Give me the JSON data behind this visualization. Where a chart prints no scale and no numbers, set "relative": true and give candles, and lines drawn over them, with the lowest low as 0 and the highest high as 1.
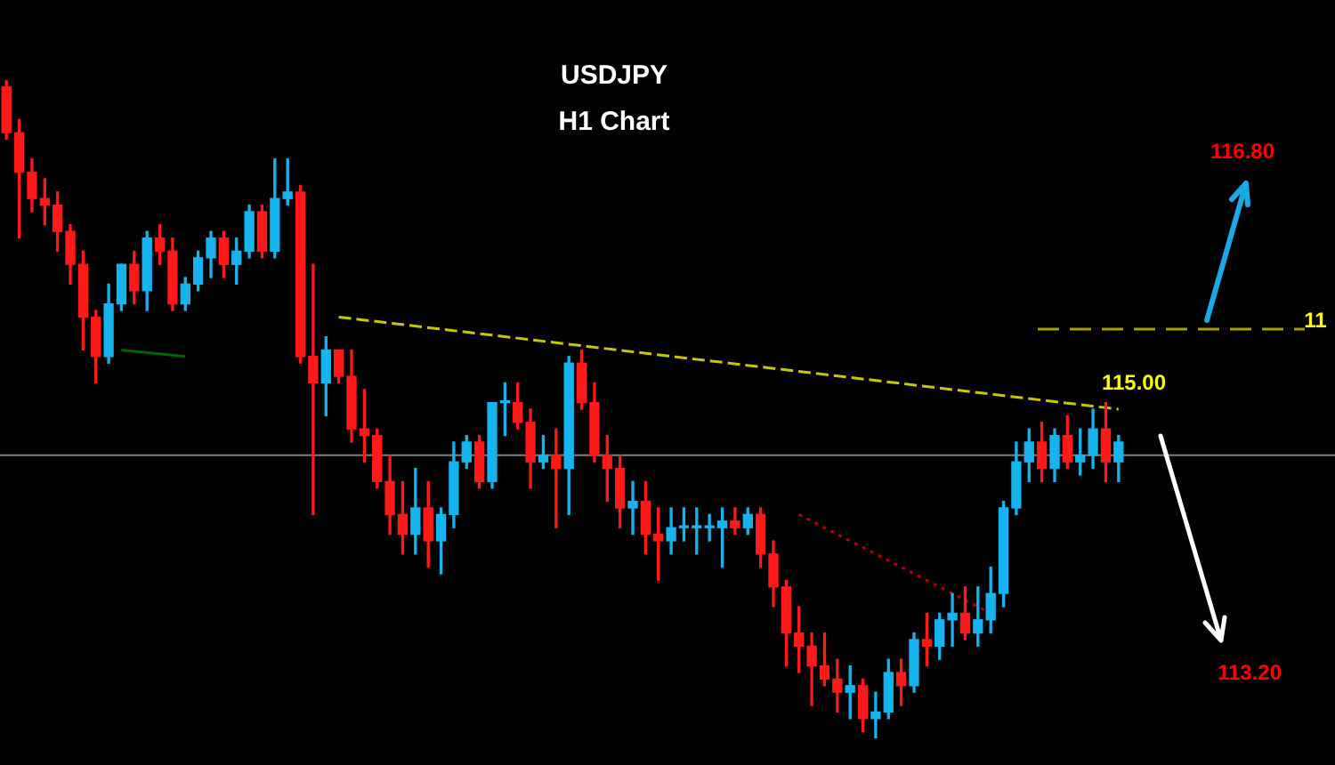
{
  "chart_data": {
    "type": "candlestick",
    "title": "USDJPY",
    "subtitle": "H1 Chart",
    "relative": true,
    "categories": [
      null,
      null,
      null,
      null,
      null,
      null,
      null,
      null,
      null,
      null,
      null,
      null,
      null,
      null,
      null,
      null,
      null,
      null,
      null,
      null,
      null,
      null,
      null,
      null,
      null,
      null,
      null,
      null,
      null,
      null,
      null,
      null,
      null,
      null,
      null,
      null,
      null,
      null,
      null,
      null,
      null,
      null,
      null,
      null,
      null,
      null,
      null,
      null,
      null,
      null,
      null,
      null,
      null,
      null,
      null,
      null,
      null,
      null,
      null,
      null,
      null,
      null,
      null,
      null,
      null,
      null,
      null,
      null,
      null,
      null,
      null,
      null,
      null,
      null,
      null,
      null,
      null,
      null,
      null,
      null,
      null,
      null,
      null,
      null,
      null,
      null,
      null,
      null
    ],
    "ohlc": [
      [
        0.99,
        1.0,
        0.91,
        0.92
      ],
      [
        0.92,
        0.94,
        0.76,
        0.86
      ],
      [
        0.86,
        0.88,
        0.8,
        0.82
      ],
      [
        0.82,
        0.85,
        0.78,
        0.81
      ],
      [
        0.81,
        0.83,
        0.74,
        0.77
      ],
      [
        0.77,
        0.78,
        0.69,
        0.72
      ],
      [
        0.72,
        0.74,
        0.59,
        0.64
      ],
      [
        0.64,
        0.65,
        0.54,
        0.58
      ],
      [
        0.58,
        0.69,
        0.57,
        0.66
      ],
      [
        0.66,
        0.72,
        0.65,
        0.72
      ],
      [
        0.72,
        0.74,
        0.66,
        0.68
      ],
      [
        0.68,
        0.77,
        0.65,
        0.76
      ],
      [
        0.76,
        0.78,
        0.72,
        0.74
      ],
      [
        0.74,
        0.76,
        0.65,
        0.66
      ],
      [
        0.66,
        0.7,
        0.65,
        0.69
      ],
      [
        0.69,
        0.74,
        0.68,
        0.73
      ],
      [
        0.73,
        0.77,
        0.7,
        0.76
      ],
      [
        0.76,
        0.77,
        0.7,
        0.72
      ],
      [
        0.72,
        0.76,
        0.69,
        0.74
      ],
      [
        0.74,
        0.81,
        0.73,
        0.8
      ],
      [
        0.8,
        0.81,
        0.73,
        0.74
      ],
      [
        0.74,
        0.88,
        0.73,
        0.82
      ],
      [
        0.82,
        0.88,
        0.81,
        0.83
      ],
      [
        0.83,
        0.84,
        0.57,
        0.58
      ],
      [
        0.58,
        0.72,
        0.34,
        0.54
      ],
      [
        0.54,
        0.61,
        0.49,
        0.59
      ],
      [
        0.59,
        0.59,
        0.54,
        0.55
      ],
      [
        0.55,
        0.59,
        0.45,
        0.47
      ],
      [
        0.47,
        0.53,
        0.42,
        0.46
      ],
      [
        0.46,
        0.47,
        0.38,
        0.39
      ],
      [
        0.39,
        0.43,
        0.31,
        0.34
      ],
      [
        0.34,
        0.39,
        0.28,
        0.31
      ],
      [
        0.31,
        0.41,
        0.28,
        0.35
      ],
      [
        0.35,
        0.39,
        0.26,
        0.3
      ],
      [
        0.3,
        0.35,
        0.25,
        0.34
      ],
      [
        0.34,
        0.45,
        0.32,
        0.42
      ],
      [
        0.42,
        0.46,
        0.41,
        0.45
      ],
      [
        0.45,
        0.46,
        0.38,
        0.39
      ],
      [
        0.39,
        0.51,
        0.38,
        0.51
      ],
      [
        0.51,
        0.54,
        0.46,
        0.51
      ],
      [
        0.51,
        0.54,
        0.47,
        0.48
      ],
      [
        0.48,
        0.5,
        0.38,
        0.42
      ],
      [
        0.42,
        0.46,
        0.41,
        0.43
      ],
      [
        0.43,
        0.47,
        0.32,
        0.41
      ],
      [
        0.41,
        0.58,
        0.34,
        0.57
      ],
      [
        0.57,
        0.59,
        0.5,
        0.51
      ],
      [
        0.51,
        0.54,
        0.42,
        0.43
      ],
      [
        0.43,
        0.46,
        0.36,
        0.41
      ],
      [
        0.41,
        0.43,
        0.32,
        0.35
      ],
      [
        0.35,
        0.39,
        0.31,
        0.36
      ],
      [
        0.36,
        0.39,
        0.28,
        0.31
      ],
      [
        0.31,
        0.35,
        0.24,
        0.3
      ],
      [
        0.3,
        0.35,
        0.28,
        0.32
      ],
      [
        0.32,
        0.35,
        0.3,
        0.32
      ],
      [
        0.32,
        0.35,
        0.28,
        0.32
      ],
      [
        0.32,
        0.34,
        0.3,
        0.32
      ],
      [
        0.32,
        0.35,
        0.26,
        0.33
      ],
      [
        0.33,
        0.35,
        0.31,
        0.32
      ],
      [
        0.32,
        0.35,
        0.31,
        0.34
      ],
      [
        0.34,
        0.35,
        0.26,
        0.28
      ],
      [
        0.28,
        0.3,
        0.2,
        0.23
      ],
      [
        0.23,
        0.24,
        0.11,
        0.16
      ],
      [
        0.16,
        0.2,
        0.1,
        0.14
      ],
      [
        0.14,
        0.16,
        0.05,
        0.11
      ],
      [
        0.11,
        0.16,
        0.08,
        0.09
      ],
      [
        0.09,
        0.12,
        0.04,
        0.07
      ],
      [
        0.07,
        0.11,
        0.03,
        0.08
      ],
      [
        0.08,
        0.09,
        0.01,
        0.03
      ],
      [
        0.03,
        0.07,
        0.0,
        0.04
      ],
      [
        0.04,
        0.12,
        0.03,
        0.1
      ],
      [
        0.1,
        0.12,
        0.05,
        0.08
      ],
      [
        0.08,
        0.16,
        0.07,
        0.15
      ],
      [
        0.15,
        0.19,
        0.11,
        0.14
      ],
      [
        0.14,
        0.19,
        0.12,
        0.18
      ],
      [
        0.18,
        0.22,
        0.14,
        0.19
      ],
      [
        0.19,
        0.23,
        0.15,
        0.16
      ],
      [
        0.16,
        0.23,
        0.14,
        0.18
      ],
      [
        0.18,
        0.26,
        0.16,
        0.22
      ],
      [
        0.22,
        0.36,
        0.2,
        0.35
      ],
      [
        0.35,
        0.45,
        0.34,
        0.42
      ],
      [
        0.42,
        0.47,
        0.39,
        0.45
      ],
      [
        0.45,
        0.48,
        0.39,
        0.41
      ],
      [
        0.41,
        0.47,
        0.39,
        0.46
      ],
      [
        0.46,
        0.49,
        0.41,
        0.42
      ],
      [
        0.42,
        0.47,
        0.4,
        0.43
      ],
      [
        0.43,
        0.5,
        0.41,
        0.47
      ],
      [
        0.47,
        0.51,
        0.39,
        0.42
      ],
      [
        0.42,
        0.46,
        0.39,
        0.45
      ]
    ],
    "series": [
      {
        "type": "line",
        "color": "#c8c800",
        "line_style": "dashed",
        "values": [
          null,
          null,
          null,
          null,
          null,
          null,
          null,
          null,
          null,
          null,
          null,
          null,
          null,
          null,
          null,
          null,
          null,
          null,
          null,
          null,
          null,
          null,
          null,
          null,
          null,
          null,
          0.64,
          null,
          null,
          null,
          null,
          null,
          null,
          null,
          null,
          null,
          null,
          null,
          null,
          null,
          null,
          null,
          null,
          null,
          null,
          null,
          null,
          null,
          null,
          null,
          null,
          null,
          null,
          null,
          null,
          null,
          null,
          null,
          null,
          null,
          null,
          null,
          null,
          null,
          null,
          null,
          null,
          null,
          null,
          null,
          null,
          null,
          null,
          null,
          null,
          null,
          null,
          null,
          null,
          null,
          null,
          null,
          null,
          null,
          null,
          null,
          null,
          0.5
        ]
      },
      {
        "type": "line",
        "color": "#b00000",
        "line_style": "dotted",
        "values": [
          null,
          null,
          null,
          null,
          null,
          null,
          null,
          null,
          null,
          null,
          null,
          null,
          null,
          null,
          null,
          null,
          null,
          null,
          null,
          null,
          null,
          null,
          null,
          null,
          null,
          null,
          null,
          null,
          null,
          null,
          null,
          null,
          null,
          null,
          null,
          null,
          null,
          null,
          null,
          null,
          null,
          null,
          null,
          null,
          null,
          null,
          null,
          null,
          null,
          null,
          null,
          null,
          null,
          null,
          null,
          null,
          null,
          null,
          null,
          null,
          null,
          null,
          0.34,
          null,
          null,
          null,
          null,
          null,
          null,
          null,
          null,
          null,
          null,
          null,
          null,
          null,
          null,
          0.19,
          null,
          null,
          null,
          null,
          null,
          null,
          null,
          null,
          null,
          null
        ]
      },
      {
        "type": "line",
        "color": "#006400",
        "line_style": "solid",
        "values": [
          null,
          null,
          null,
          null,
          null,
          null,
          null,
          null,
          null,
          0.59,
          null,
          null,
          null,
          null,
          0.58,
          null,
          null,
          null,
          null,
          null,
          null,
          null,
          null,
          null,
          null,
          null,
          null,
          null,
          null,
          null,
          null,
          null,
          null,
          null,
          null,
          null,
          null,
          null,
          null,
          null,
          null,
          null,
          null,
          null,
          null,
          null,
          null,
          null,
          null,
          null,
          null,
          null,
          null,
          null,
          null,
          null,
          null,
          null,
          null,
          null,
          null,
          null,
          null,
          null,
          null,
          null,
          null,
          null,
          null,
          null,
          null,
          null,
          null,
          null,
          null,
          null,
          null,
          null,
          null,
          null,
          null,
          null,
          null,
          null,
          null,
          null,
          null,
          null
        ]
      }
    ],
    "ref_lines": [
      {
        "axis": "y",
        "value": 0.43,
        "color": "#808080"
      }
    ],
    "annotations": [
      "116.80",
      "115.00",
      "113.20",
      "11"
    ]
  }
}
